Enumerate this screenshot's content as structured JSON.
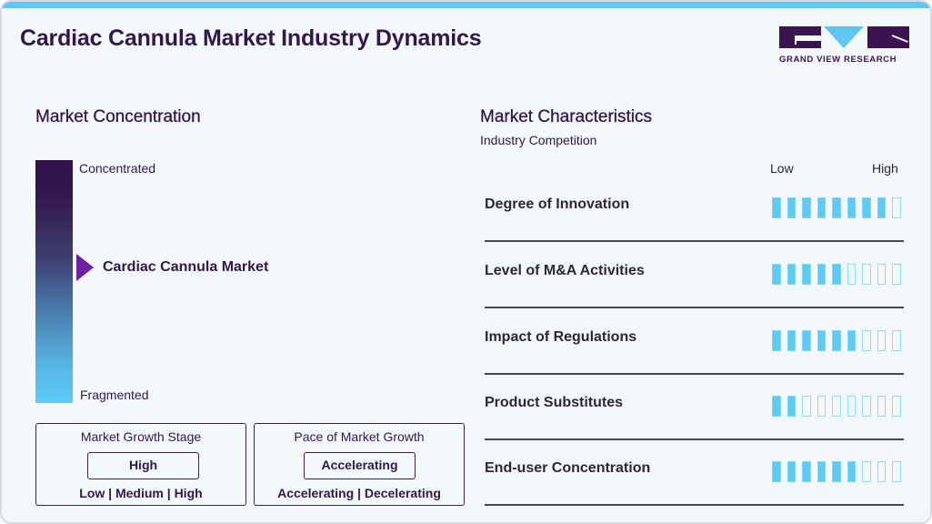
{
  "header": {
    "title": "Cardiac Cannula Market Industry Dynamics",
    "logo_text": "GRAND VIEW RESEARCH",
    "accent_color": "#5ec8f2",
    "brand_color": "#3a1551"
  },
  "concentration": {
    "title": "Market Concentration",
    "top_label": "Concentrated",
    "bottom_label": "Fragmented",
    "market_label": "Cardiac Cannula Market",
    "pointer_color": "#7021a3"
  },
  "growth_stage": {
    "title": "Market Growth Stage",
    "value": "High",
    "options": "Low | Medium | High"
  },
  "growth_pace": {
    "title": "Pace of Market Growth",
    "value": "Accelerating",
    "options": "Accelerating | Decelerating"
  },
  "characteristics": {
    "title": "Market Characteristics",
    "subtitle": "Industry Competition",
    "scale_low": "Low",
    "scale_high": "High",
    "max_score": 9,
    "rows": [
      {
        "label": "Degree of Innovation",
        "score": 8
      },
      {
        "label": "Level of M&A Activities",
        "score": 5
      },
      {
        "label": "Impact of Regulations",
        "score": 6
      },
      {
        "label": "Product Substitutes",
        "score": 2
      },
      {
        "label": "End-user Concentration",
        "score": 6
      }
    ]
  }
}
